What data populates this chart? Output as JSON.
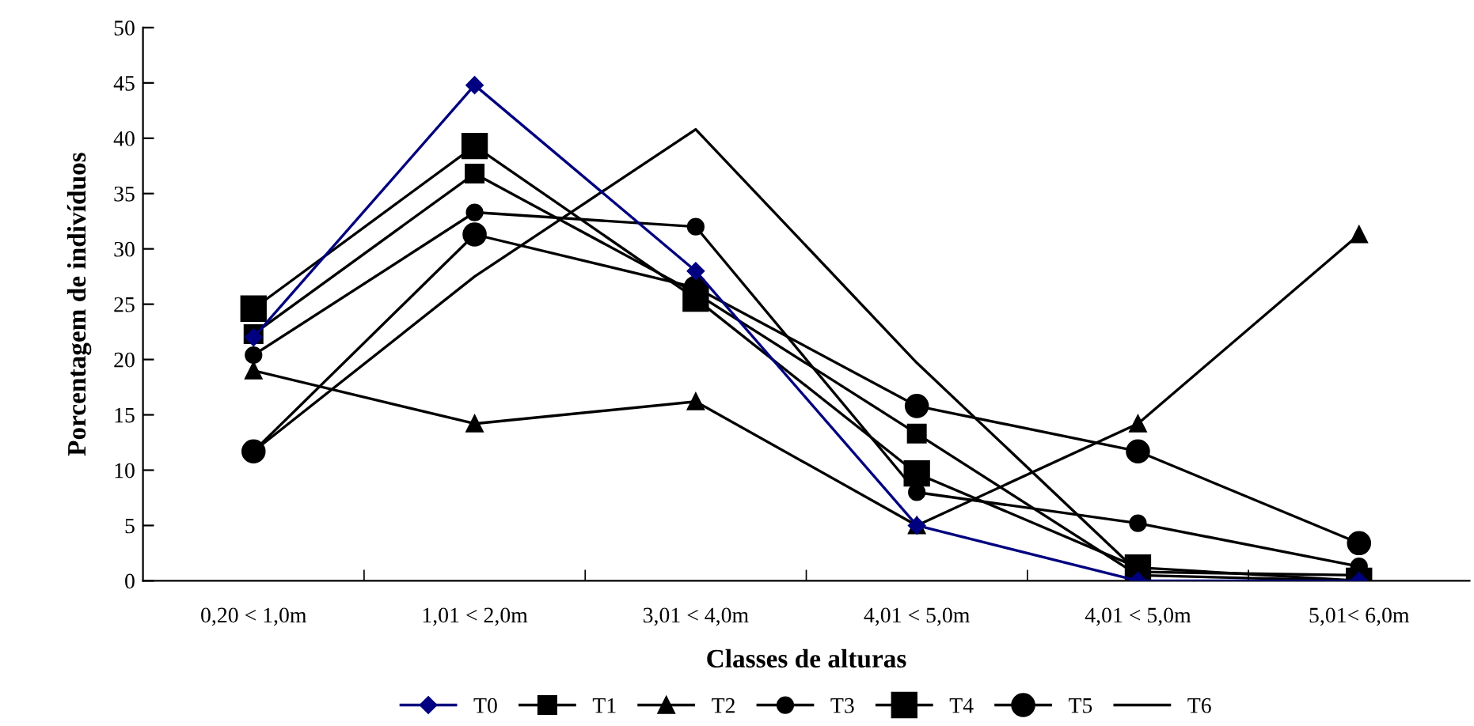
{
  "chart_data": {
    "type": "line",
    "xlabel": "Classes de alturas",
    "ylabel": "Porcentagem de indivíduos",
    "categories": [
      "0,20 < 1,0m",
      "1,01 < 2,0m",
      "3,01 < 4,0m",
      "4,01 < 5,0m",
      "4,01 < 5,0m",
      "5,01< 6,0m"
    ],
    "ylim": [
      0,
      50
    ],
    "yticks": [
      0,
      5,
      10,
      15,
      20,
      25,
      30,
      35,
      40,
      45,
      50
    ],
    "grid": false,
    "legend": "bottom",
    "series": [
      {
        "name": "T0",
        "color": "#000080",
        "marker": "diamond",
        "values": [
          22,
          44.8,
          28,
          5,
          0,
          0
        ]
      },
      {
        "name": "T1",
        "color": "#000000",
        "marker": "square",
        "values": [
          22.3,
          36.8,
          26,
          13.3,
          0.5,
          0
        ]
      },
      {
        "name": "T2",
        "color": "#000000",
        "marker": "triangle",
        "values": [
          19,
          14.2,
          16.2,
          5,
          14.2,
          31.3
        ]
      },
      {
        "name": "T3",
        "color": "#000000",
        "marker": "circle",
        "values": [
          20.4,
          33.3,
          32,
          8,
          5.2,
          1.3
        ]
      },
      {
        "name": "T4",
        "color": "#000000",
        "marker": "square",
        "values": [
          24.6,
          39.3,
          25.5,
          9.7,
          1.2,
          0
        ]
      },
      {
        "name": "T5",
        "color": "#000000",
        "marker": "circle",
        "values": [
          11.7,
          31.3,
          26.5,
          15.8,
          11.7,
          3.4
        ]
      },
      {
        "name": "T6",
        "color": "#000000",
        "marker": "none",
        "values": [
          11.7,
          27.5,
          40.8,
          19.7,
          0.8,
          0.5
        ]
      }
    ]
  }
}
